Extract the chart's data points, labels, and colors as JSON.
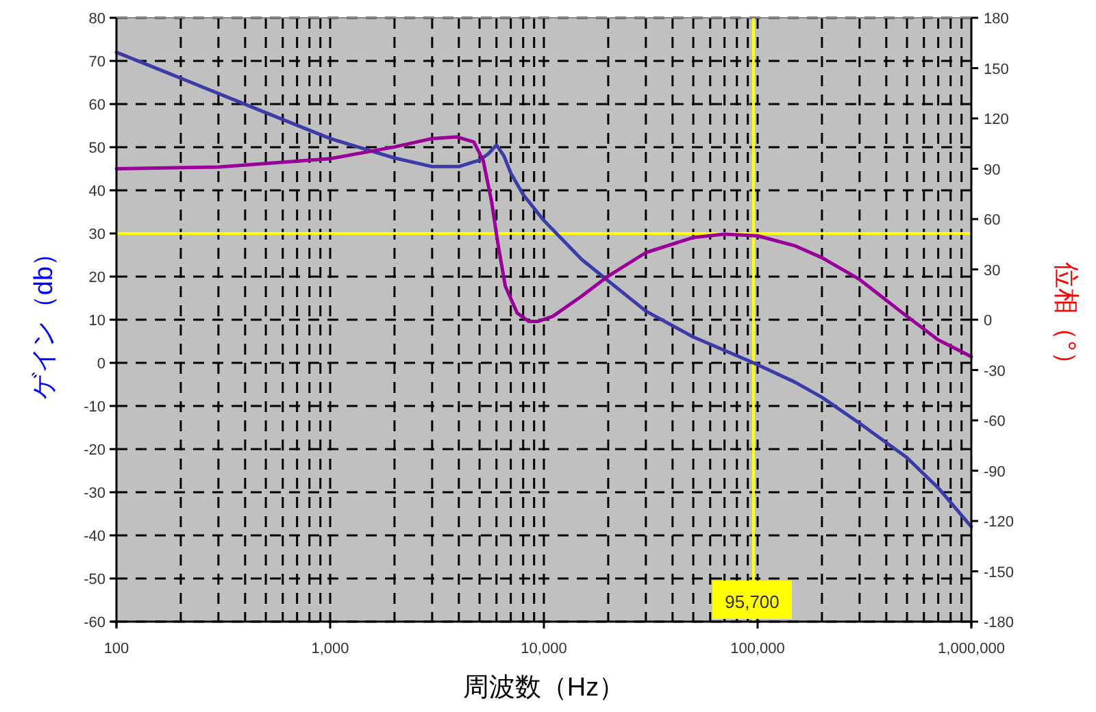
{
  "chart_data": {
    "type": "line",
    "xlabel": "周波数（Hz）",
    "ylabel": "ゲイン（db）",
    "y2label": "位相（°）",
    "log": "x",
    "grid": true,
    "xlim": [
      100,
      1000000
    ],
    "xticks": [
      {
        "value": 100,
        "label": "100"
      },
      {
        "value": 1000,
        "label": "1,000"
      },
      {
        "value": 10000,
        "label": "10,000"
      },
      {
        "value": 100000,
        "label": "100,000"
      },
      {
        "value": 1000000,
        "label": "1,000,000"
      }
    ],
    "ylim": [
      -60,
      80
    ],
    "yticks": [
      80,
      70,
      60,
      50,
      40,
      30,
      20,
      10,
      0,
      -10,
      -20,
      -30,
      -40,
      -50,
      -60
    ],
    "y2lim": [
      -180,
      180
    ],
    "y2ticks": [
      180,
      150,
      120,
      90,
      60,
      30,
      0,
      -30,
      -60,
      -90,
      -120,
      -150,
      -180
    ],
    "series": [
      {
        "color": "#3c3ca8",
        "x": [
          100,
          200,
          500,
          1000,
          2000,
          3000,
          4000,
          5000,
          5500,
          6000,
          6500,
          7000,
          8000,
          10000,
          15000,
          20000,
          30000,
          50000,
          95700,
          150000,
          200000,
          300000,
          500000,
          700000,
          1000000
        ],
        "values": [
          72,
          66,
          58,
          52,
          47.5,
          45.5,
          45.5,
          47,
          48.5,
          50.5,
          48,
          44,
          39,
          33,
          24,
          19,
          12,
          6,
          0,
          -4.5,
          -8,
          -14,
          -22,
          -29,
          -38
        ]
      },
      {
        "axis": "y2",
        "color": "#990099",
        "x": [
          100,
          300,
          1000,
          2000,
          3000,
          3900,
          4700,
          5200,
          5700,
          6100,
          6600,
          7500,
          8500,
          9400,
          11000,
          15000,
          20000,
          30000,
          50000,
          70000,
          100000,
          150000,
          200000,
          300000,
          500000,
          700000,
          1000000
        ],
        "values": [
          90,
          91,
          96,
          103,
          108,
          109,
          106,
          95,
          70,
          45,
          20,
          4,
          -1,
          -1,
          2,
          14,
          26,
          40,
          49,
          51,
          50,
          44,
          37,
          24,
          2,
          -12,
          -22
        ]
      }
    ],
    "ref_lines": [
      {
        "axis": "y",
        "value": 30,
        "color": "#ffff00"
      },
      {
        "axis": "x",
        "value": 95700,
        "label": "95,700",
        "color": "#ffff00"
      }
    ]
  }
}
